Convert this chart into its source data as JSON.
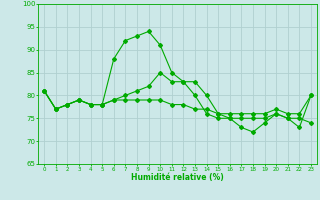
{
  "xlabel": "Humidité relative (%)",
  "bg_color": "#cce8e8",
  "grid_color": "#b0d0d0",
  "line_color": "#00aa00",
  "xlim": [
    -0.5,
    23.5
  ],
  "ylim": [
    65,
    100
  ],
  "yticks": [
    65,
    70,
    75,
    80,
    85,
    90,
    95,
    100
  ],
  "xticks": [
    0,
    1,
    2,
    3,
    4,
    5,
    6,
    7,
    8,
    9,
    10,
    11,
    12,
    13,
    14,
    15,
    16,
    17,
    18,
    19,
    20,
    21,
    22,
    23
  ],
  "line1": [
    81,
    77,
    78,
    79,
    78,
    78,
    88,
    92,
    93,
    94,
    91,
    85,
    83,
    83,
    80,
    76,
    75,
    73,
    72,
    74,
    76,
    75,
    75,
    74
  ],
  "line2": [
    81,
    77,
    78,
    79,
    78,
    78,
    79,
    80,
    81,
    82,
    85,
    83,
    83,
    80,
    76,
    75,
    75,
    75,
    75,
    75,
    76,
    75,
    73,
    80
  ],
  "line3": [
    81,
    77,
    78,
    79,
    78,
    78,
    79,
    79,
    79,
    79,
    79,
    78,
    78,
    77,
    77,
    76,
    76,
    76,
    76,
    76,
    77,
    76,
    76,
    80
  ]
}
